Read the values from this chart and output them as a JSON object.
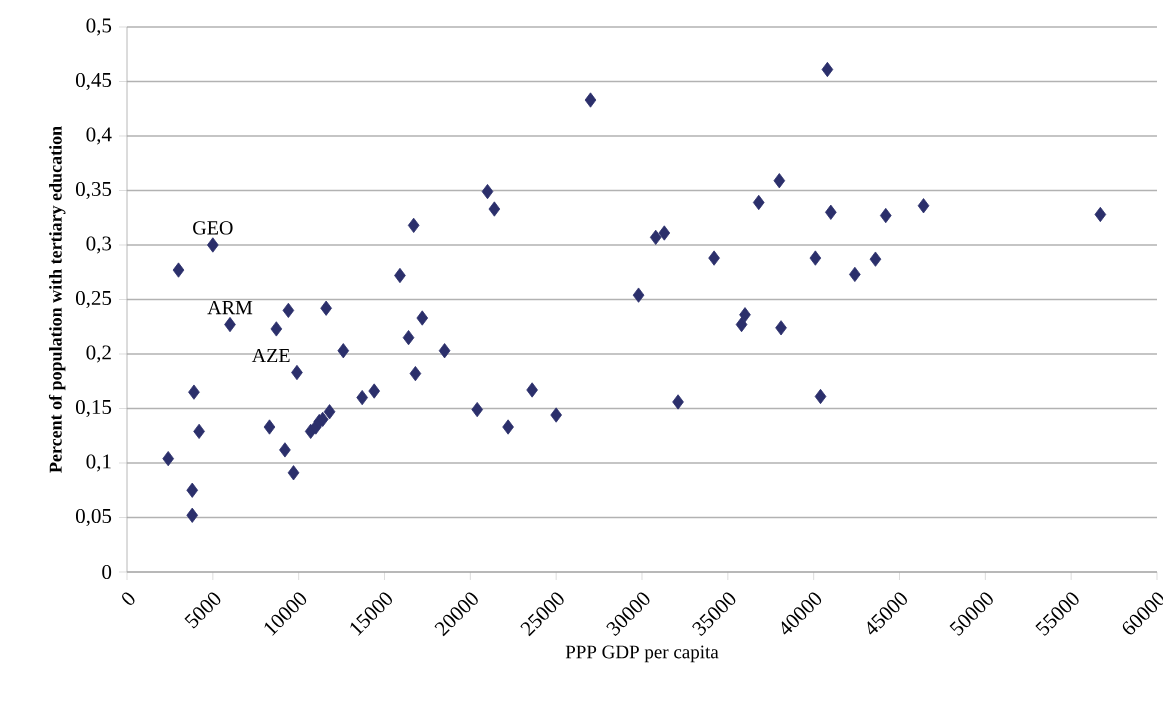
{
  "chart_data": {
    "type": "scatter",
    "xlabel": "PPP GDP per capita",
    "ylabel": "Percent of population with tertiary education",
    "series": [
      {
        "color": "#2b2f6b",
        "x": [
          2400,
          3000,
          3900,
          3800,
          3800,
          4200,
          5000,
          6000,
          8300,
          8700,
          9200,
          9400,
          9700,
          9900,
          10700,
          11000,
          11200,
          11400,
          11600,
          11800,
          12600,
          13700,
          14400,
          15900,
          16400,
          16700,
          16800,
          17200,
          18500,
          20400,
          21000,
          21400,
          22200,
          23600,
          25000,
          27000,
          29800,
          30800,
          31300,
          32100,
          34200,
          35800,
          36000,
          36800,
          38000,
          38100,
          40100,
          40400,
          40800,
          41000,
          42400,
          43600,
          44200,
          46400,
          56700
        ],
        "values": [
          0.104,
          0.277,
          0.165,
          0.075,
          0.052,
          0.129,
          0.3,
          0.227,
          0.133,
          0.223,
          0.112,
          0.24,
          0.091,
          0.183,
          0.129,
          0.133,
          0.138,
          0.14,
          0.242,
          0.147,
          0.203,
          0.16,
          0.166,
          0.272,
          0.215,
          0.318,
          0.182,
          0.233,
          0.203,
          0.149,
          0.349,
          0.333,
          0.133,
          0.167,
          0.144,
          0.433,
          0.254,
          0.307,
          0.311,
          0.156,
          0.288,
          0.227,
          0.236,
          0.339,
          0.359,
          0.224,
          0.288,
          0.161,
          0.461,
          0.33,
          0.273,
          0.287,
          0.327,
          0.336,
          0.328
        ]
      }
    ],
    "annotations": [
      {
        "text": "GEO",
        "x": 5000,
        "y": 0.3
      },
      {
        "text": "ARM",
        "x": 6000,
        "y": 0.227
      },
      {
        "text": "AZE",
        "x": 9900,
        "y": 0.183
      }
    ],
    "marker": "diamond",
    "grid": "y",
    "xlim": [
      0,
      60000
    ],
    "xticks": [
      0,
      5000,
      10000,
      15000,
      20000,
      25000,
      30000,
      35000,
      40000,
      45000,
      50000,
      55000,
      60000
    ],
    "ylim": [
      0,
      0.5
    ],
    "yticks": [
      {
        "value": 0,
        "label": "0"
      },
      {
        "value": 0.05,
        "label": "0,05"
      },
      {
        "value": 0.1,
        "label": "0,1"
      },
      {
        "value": 0.15,
        "label": "0,15"
      },
      {
        "value": 0.2,
        "label": "0,2"
      },
      {
        "value": 0.25,
        "label": "0,25"
      },
      {
        "value": 0.3,
        "label": "0,3"
      },
      {
        "value": 0.35,
        "label": "0,35"
      },
      {
        "value": 0.4,
        "label": "0,4"
      },
      {
        "value": 0.45,
        "label": "0,45"
      },
      {
        "value": 0.5,
        "label": "0,5"
      }
    ]
  }
}
